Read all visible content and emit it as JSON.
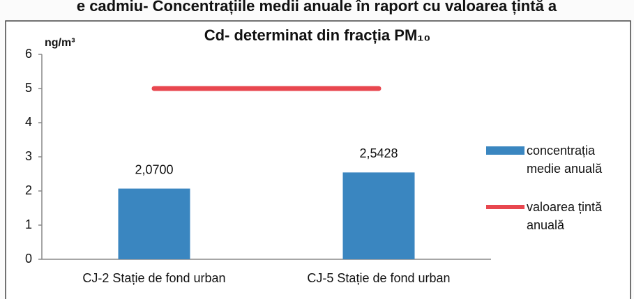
{
  "header": "e cadmiu- Concentrațiile medii anuale în raport cu valoarea țintă a",
  "chart_data": {
    "type": "bar",
    "title": "Cd- determinat din fracția PM₁₀",
    "y_label": "ng/m³",
    "categories": [
      "CJ-2 Stație de fond urban",
      "CJ-5 Stație de fond urban"
    ],
    "series": [
      {
        "name": "concentrația medie anuală",
        "type": "bar",
        "color": "#3a86c0",
        "values": [
          2.07,
          2.5428
        ],
        "value_labels": [
          "2,0700",
          "2,5428"
        ]
      },
      {
        "name": "valoarea țintă anuală",
        "type": "line",
        "color": "#e8474f",
        "values": [
          5,
          5
        ]
      }
    ],
    "ylim": [
      0,
      6
    ],
    "yticks": [
      0,
      1,
      2,
      3,
      4,
      5,
      6
    ],
    "legend": "right"
  }
}
